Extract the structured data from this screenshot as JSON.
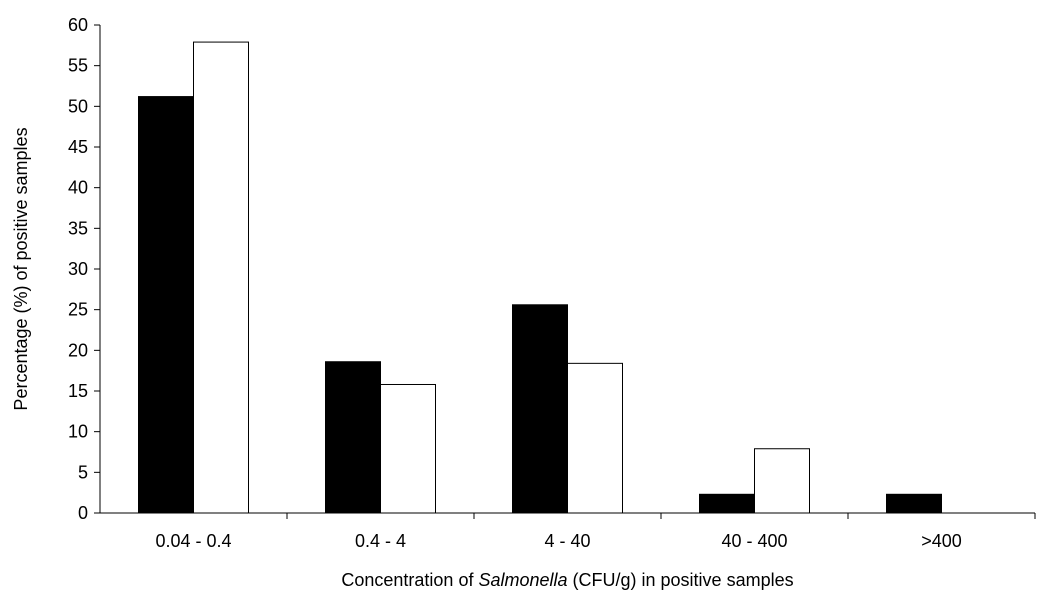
{
  "chart_data": {
    "type": "bar",
    "title": "",
    "xlabel_parts": [
      {
        "text": "Concentration of ",
        "italic": false
      },
      {
        "text": "Salmonella",
        "italic": true
      },
      {
        "text": " (CFU/g) in positive samples",
        "italic": false
      }
    ],
    "ylabel": "Percentage (%) of positive samples",
    "categories": [
      "0.04 - 0.4",
      "0.4 - 4",
      "4 - 40",
      "40 - 400",
      ">400"
    ],
    "series": [
      {
        "values": [
          51.2,
          18.6,
          25.6,
          2.3,
          2.3
        ],
        "color": "#000000"
      },
      {
        "values": [
          57.9,
          15.8,
          18.4,
          7.9,
          0
        ],
        "color": "#ffffff"
      }
    ],
    "ylim": [
      0,
      60
    ],
    "yticks": [
      "0",
      "5",
      "10",
      "15",
      "20",
      "25",
      "30",
      "35",
      "40",
      "45",
      "50",
      "55",
      "60"
    ],
    "grid": false,
    "legend": "none"
  }
}
